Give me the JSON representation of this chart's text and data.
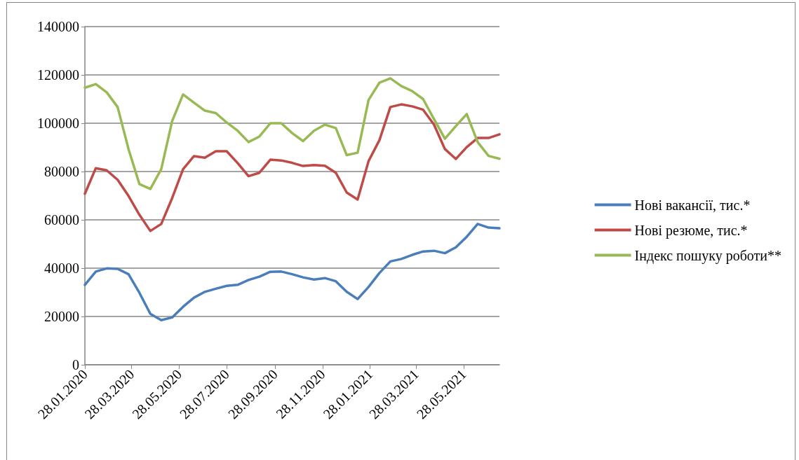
{
  "chart_data": {
    "type": "line",
    "x": [
      "2020-01-28",
      "2020-02-11",
      "2020-02-25",
      "2020-03-10",
      "2020-03-24",
      "2020-04-07",
      "2020-04-21",
      "2020-05-05",
      "2020-05-19",
      "2020-06-02",
      "2020-06-16",
      "2020-06-30",
      "2020-07-14",
      "2020-07-28",
      "2020-08-11",
      "2020-08-25",
      "2020-09-08",
      "2020-09-22",
      "2020-10-06",
      "2020-10-20",
      "2020-11-03",
      "2020-11-17",
      "2020-12-01",
      "2020-12-15",
      "2020-12-29",
      "2021-01-12",
      "2021-01-26",
      "2021-02-09",
      "2021-02-23",
      "2021-03-09",
      "2021-03-23",
      "2021-04-06",
      "2021-04-20",
      "2021-05-04",
      "2021-05-18",
      "2021-06-01",
      "2021-06-15",
      "2021-06-29",
      "2021-07-13"
    ],
    "series": [
      {
        "name": "Нові вакансії, тис.*",
        "color": "#4a7ebb",
        "values": [
          33100,
          38600,
          39900,
          39700,
          37500,
          29800,
          21100,
          18500,
          19600,
          24000,
          27800,
          30200,
          31500,
          32700,
          33100,
          35100,
          36500,
          38500,
          38600,
          37500,
          36200,
          35300,
          35900,
          34600,
          30200,
          27200,
          32200,
          38000,
          42800,
          43800,
          45500,
          46900,
          47200,
          46200,
          48600,
          53000,
          58300,
          56800,
          56500
        ]
      },
      {
        "name": "Нові резюме, тис.*",
        "color": "#be4b48",
        "values": [
          70800,
          81400,
          80500,
          76600,
          69900,
          62100,
          55400,
          58300,
          69000,
          81000,
          86400,
          85700,
          88400,
          88400,
          83500,
          78100,
          79500,
          84900,
          84600,
          83600,
          82300,
          82700,
          82400,
          79500,
          71300,
          68400,
          84300,
          93000,
          106700,
          107800,
          107000,
          105600,
          99400,
          89300,
          85200,
          90100,
          93900,
          93900,
          95400
        ]
      },
      {
        "name": "Індекс пошуку роботи**",
        "color": "#98b954",
        "values": [
          114700,
          116200,
          112800,
          106700,
          89300,
          74800,
          72800,
          81000,
          100900,
          111900,
          108500,
          105200,
          104200,
          100300,
          96900,
          92200,
          94500,
          100000,
          100000,
          95900,
          92600,
          96900,
          99400,
          98000,
          86800,
          87800,
          109600,
          116800,
          118600,
          115400,
          113300,
          110000,
          101700,
          93600,
          98800,
          103800,
          92200,
          86500,
          85300
        ]
      }
    ],
    "xlim": [
      "2020-01-28",
      "2021-07-13"
    ],
    "xticks": [
      {
        "value": "2020-01-28",
        "label": "28.01.2020"
      },
      {
        "value": "2020-03-28",
        "label": "28.03.2020"
      },
      {
        "value": "2020-05-28",
        "label": "28.05.2020"
      },
      {
        "value": "2020-07-28",
        "label": "28.07.2020"
      },
      {
        "value": "2020-09-28",
        "label": "28.09.2020"
      },
      {
        "value": "2020-11-28",
        "label": "28.11.2020"
      },
      {
        "value": "2021-01-28",
        "label": "28.01.2021"
      },
      {
        "value": "2021-03-28",
        "label": "28.03.2021"
      },
      {
        "value": "2021-05-28",
        "label": "28.05.2021"
      }
    ],
    "ylim": [
      0,
      140000
    ],
    "yticks": [
      0,
      20000,
      40000,
      60000,
      80000,
      100000,
      120000,
      140000
    ],
    "grid": "y",
    "legend": "right",
    "marker": "none",
    "line_style": "solid"
  }
}
